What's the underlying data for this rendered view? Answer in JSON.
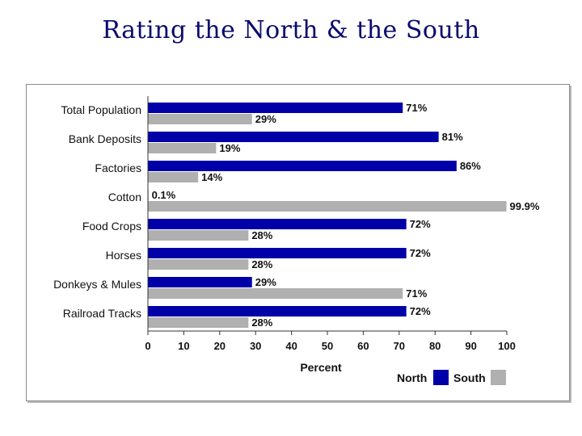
{
  "title": "Rating the North & the South",
  "colors": {
    "north": "#0000a8",
    "south": "#b0b0b0"
  },
  "chart_data": {
    "type": "bar",
    "orientation": "horizontal",
    "categories": [
      "Total Population",
      "Bank Deposits",
      "Factories",
      "Cotton",
      "Food Crops",
      "Horses",
      "Donkeys & Mules",
      "Railroad Tracks"
    ],
    "series": [
      {
        "name": "North",
        "values": [
          71,
          81,
          86,
          0.1,
          72,
          72,
          29,
          72
        ],
        "labels": [
          "71%",
          "81%",
          "86%",
          "0.1%",
          "72%",
          "72%",
          "29%",
          "72%"
        ]
      },
      {
        "name": "South",
        "values": [
          29,
          19,
          14,
          99.9,
          28,
          28,
          71,
          28
        ],
        "labels": [
          "29%",
          "19%",
          "14%",
          "99.9%",
          "28%",
          "28%",
          "71%",
          "28%"
        ]
      }
    ],
    "xlabel": "Percent",
    "xlim": [
      0,
      100
    ],
    "xticks": [
      "0",
      "10",
      "20",
      "30",
      "40",
      "50",
      "60",
      "70",
      "80",
      "90",
      "100"
    ],
    "grid": false,
    "legend_position": "bottom-right"
  }
}
